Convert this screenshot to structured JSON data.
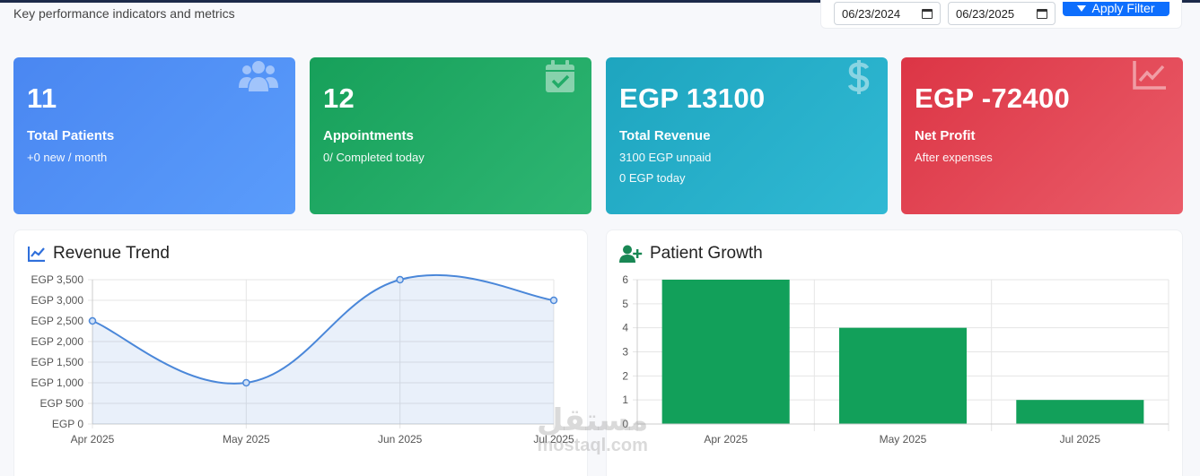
{
  "header": {
    "subtitle": "Key performance indicators and metrics",
    "filter": {
      "date_from": "06/23/2024",
      "date_to": "06/23/2025",
      "apply_label": "Apply Filter"
    }
  },
  "cards": [
    {
      "value": "11",
      "label": "Total Patients",
      "sub": "+0 new / month",
      "icon": "users-icon",
      "color": "#4a87f1"
    },
    {
      "value": "12",
      "label": "Appointments",
      "sub": "0/ Completed today",
      "icon": "calendar-check-icon",
      "color": "#17a05a"
    },
    {
      "value": "EGP 13100",
      "label": "Total Revenue",
      "sub": "3100 EGP unpaid",
      "sub2": "0 EGP today",
      "icon": "dollar-icon",
      "color": "#1ea5bf"
    },
    {
      "value": "EGP -72400",
      "label": "Net Profit",
      "sub": "After expenses",
      "icon": "chart-line-icon",
      "color": "#dc3545"
    }
  ],
  "revenue_panel": {
    "title": "Revenue Trend",
    "icon": "chart-line-icon"
  },
  "growth_panel": {
    "title": "Patient Growth",
    "icon": "user-plus-icon"
  },
  "chart_data": [
    {
      "type": "line",
      "title": "Revenue Trend",
      "categories": [
        "Apr 2025",
        "May 2025",
        "Jun 2025",
        "Jul 2025"
      ],
      "values": [
        2500,
        1000,
        3500,
        3000
      ],
      "yticks": [
        "EGP 0",
        "EGP 500",
        "EGP 1,000",
        "EGP 1,500",
        "EGP 2,000",
        "EGP 2,500",
        "EGP 3,000",
        "EGP 3,500"
      ],
      "ylim": [
        0,
        3500
      ],
      "fill": true,
      "color": "#4a87d9",
      "grid": true
    },
    {
      "type": "bar",
      "title": "Patient Growth",
      "categories": [
        "Apr 2025",
        "May 2025",
        "Jul 2025"
      ],
      "values": [
        6,
        4,
        1
      ],
      "yticks": [
        "0",
        "1",
        "2",
        "3",
        "4",
        "5",
        "6"
      ],
      "ylim": [
        0,
        6
      ],
      "color": "#12a05a",
      "grid": true
    }
  ],
  "watermark": {
    "arabic": "مستقل",
    "latin": "mostaql.com"
  }
}
